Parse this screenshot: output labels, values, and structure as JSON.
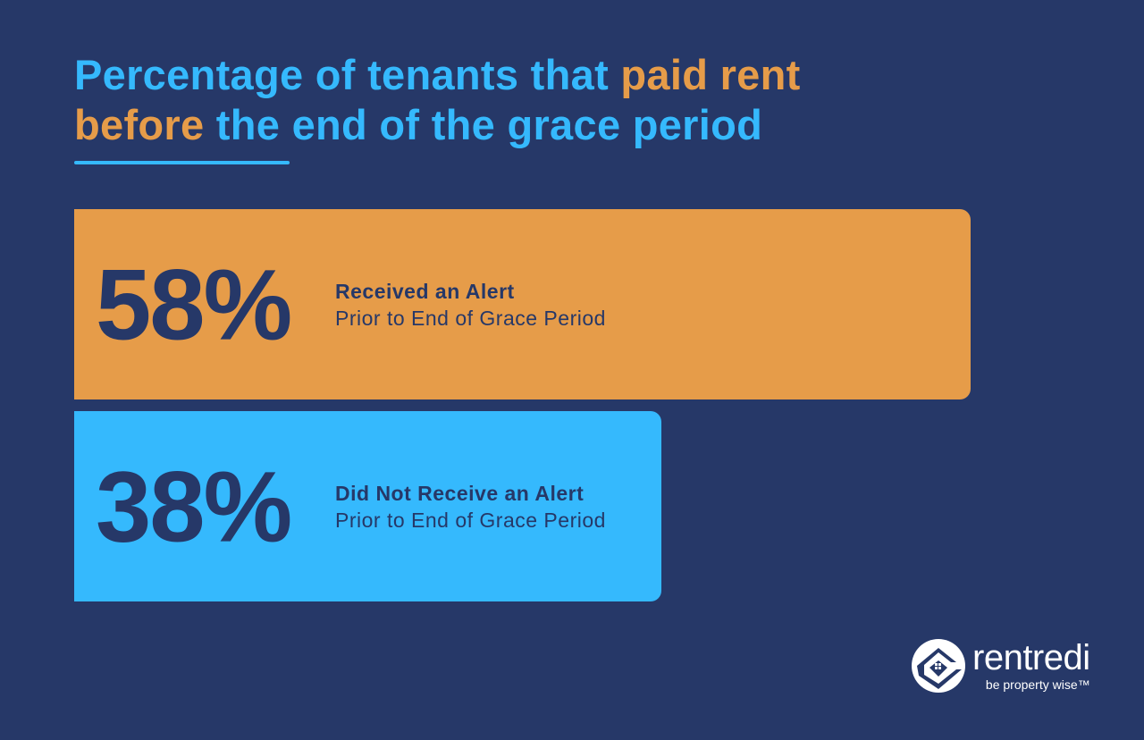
{
  "title": {
    "part1": "Percentage of tenants that ",
    "highlight1": "paid rent",
    "highlight2": "before",
    "part2": " the end of the grace period"
  },
  "colors": {
    "background": "#263868",
    "blue": "#35b9fd",
    "orange": "#e69c49"
  },
  "chart_data": {
    "type": "bar",
    "orientation": "horizontal",
    "categories": [
      "Received an Alert Prior to End of Grace Period",
      "Did Not Receive an Alert Prior to End of Grace Period"
    ],
    "values": [
      58,
      38
    ],
    "unit": "%",
    "bars": [
      {
        "value_label": "58%",
        "label_bold": "Received an Alert",
        "label_sub": "Prior to End of Grace Period",
        "color": "#e69c49",
        "value": 58
      },
      {
        "value_label": "38%",
        "label_bold": "Did Not Receive an Alert",
        "label_sub": "Prior to End of Grace Period",
        "color": "#35b9fd",
        "value": 38
      }
    ],
    "grid": false
  },
  "logo": {
    "name": "rentredi",
    "tagline": "be property wise™",
    "icon": "house-check-logo-icon"
  }
}
